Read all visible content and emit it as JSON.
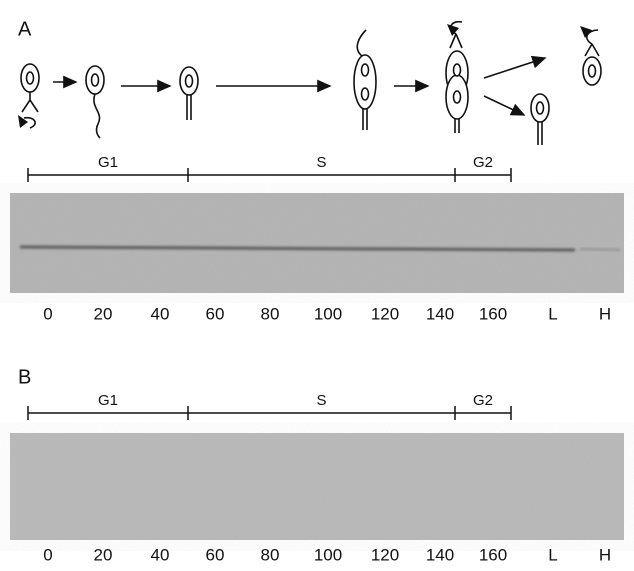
{
  "panels": [
    {
      "label": "A",
      "phases": [
        "G1",
        "S",
        "G2"
      ],
      "lanes": [
        "0",
        "20",
        "40",
        "60",
        "80",
        "100",
        "120",
        "140",
        "160",
        "L",
        "H"
      ]
    },
    {
      "label": "B",
      "phases": [
        "G1",
        "S",
        "G2"
      ],
      "lanes": [
        "0",
        "20",
        "40",
        "60",
        "80",
        "100",
        "120",
        "140",
        "160",
        "L",
        "H"
      ]
    }
  ]
}
